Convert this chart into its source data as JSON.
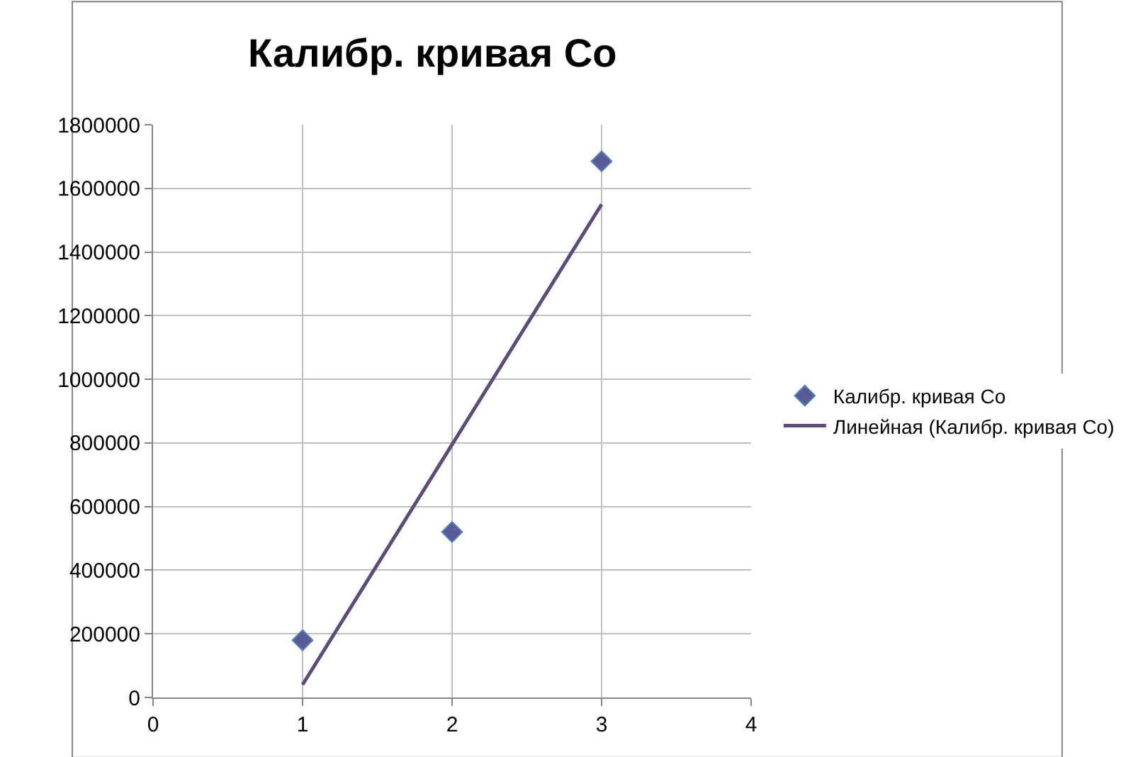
{
  "chart_data": {
    "type": "scatter",
    "title": "Калибр. кривая Co",
    "series": [
      {
        "name": "Калибр. кривая Co",
        "color": "#5a5a96",
        "x": [
          1,
          2,
          3
        ],
        "values": [
          180000,
          520000,
          1685000
        ],
        "marker": "diamond"
      },
      {
        "name": "Линейная (Калибр. кривая Co)",
        "type": "line",
        "color": "#604a7b",
        "x": [
          1,
          3
        ],
        "values": [
          40000,
          1550000
        ],
        "marker": "none",
        "line_style": "solid"
      }
    ],
    "xlim": [
      0,
      4
    ],
    "xticks": [
      0,
      1,
      2,
      3,
      4
    ],
    "ylim": [
      0,
      1800000
    ],
    "yticks": [
      0,
      200000,
      400000,
      600000,
      800000,
      1000000,
      1200000,
      1400000,
      1600000,
      1800000
    ],
    "grid": true,
    "legend": "right"
  }
}
